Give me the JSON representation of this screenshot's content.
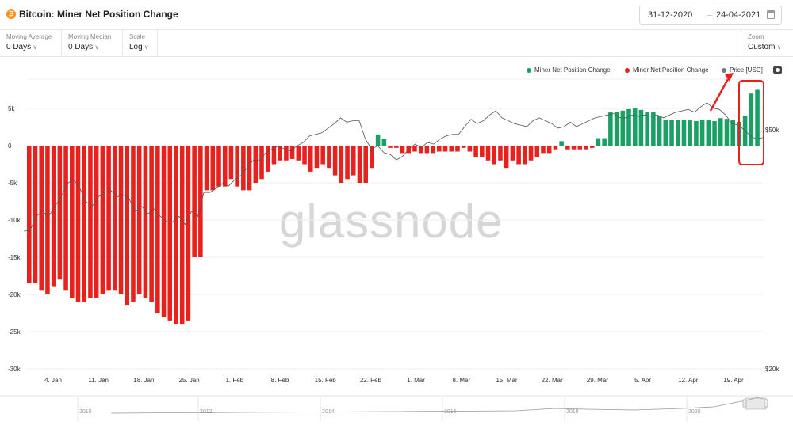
{
  "header": {
    "coin_glyph": "₿",
    "title": "Bitcoin: Miner Net Position Change",
    "date_from": "31-12-2020",
    "date_arrow": "→",
    "date_to": "24-04-2021"
  },
  "controls": {
    "moving_average": {
      "label": "Moving Average",
      "value": "0 Days"
    },
    "moving_median": {
      "label": "Moving Median",
      "value": "0 Days"
    },
    "scale": {
      "label": "Scale",
      "value": "Log"
    },
    "zoom": {
      "label": "Zoom",
      "value": "Custom"
    }
  },
  "legend": {
    "green": "Miner Net Position Change",
    "red": "Miner Net Position Change",
    "gray": "Price [USD]"
  },
  "watermark": "glassnode",
  "colors": {
    "positive": "#1aa065",
    "negative": "#e8211d",
    "price": "#555555",
    "highlight": "#e8211d",
    "grid": "#eeeeee"
  },
  "icons": [
    "bitcoin-icon",
    "calendar-icon",
    "camera-icon",
    "chevron-down-icon",
    "arrow-icon"
  ],
  "chart_data": {
    "type": "bar",
    "y_ticks": [
      "5k",
      "0",
      "-5k",
      "-10k",
      "-15k",
      "-20k",
      "-25k",
      "-30k"
    ],
    "y_tick_values": [
      5000,
      0,
      -5000,
      -10000,
      -15000,
      -20000,
      -25000,
      -30000
    ],
    "ylim": [
      -30000,
      10000
    ],
    "right_axis_ticks": [
      "$50k",
      "$20k"
    ],
    "x_labels": [
      "4. Jan",
      "11. Jan",
      "18. Jan",
      "25. Jan",
      "1. Feb",
      "8. Feb",
      "15. Feb",
      "22. Feb",
      "1. Mar",
      "8. Mar",
      "15. Mar",
      "22. Mar",
      "29. Mar",
      "5. Apr",
      "12. Apr",
      "19. Apr"
    ],
    "series": [
      {
        "name": "Miner Net Position Change",
        "start_date": "2021-01-01",
        "values": [
          -18500,
          -18500,
          -19500,
          -20000,
          -19000,
          -18000,
          -19500,
          -20500,
          -21000,
          -21000,
          -20500,
          -20500,
          -20000,
          -19500,
          -19500,
          -20000,
          -21500,
          -21000,
          -20000,
          -20500,
          -21000,
          -22500,
          -23000,
          -23500,
          -24000,
          -24000,
          -23500,
          -15000,
          -15000,
          -6000,
          -6000,
          -5500,
          -5500,
          -4500,
          -5500,
          -6000,
          -6000,
          -5000,
          -4500,
          -3500,
          -2500,
          -2000,
          -2000,
          -1800,
          -2000,
          -2500,
          -3500,
          -3000,
          -2500,
          -3000,
          -4000,
          -5000,
          -4500,
          -4000,
          -5000,
          -5000,
          -3000,
          1500,
          900,
          -300,
          -300,
          -1000,
          -1000,
          -800,
          -1000,
          -1000,
          -1000,
          -800,
          -800,
          -800,
          -800,
          -300,
          -800,
          -1500,
          -1500,
          -2000,
          -2500,
          -2000,
          -3000,
          -2000,
          -2500,
          -2500,
          -2000,
          -1500,
          -1000,
          -1000,
          -500,
          600,
          -500,
          -500,
          -500,
          -500,
          -300,
          1000,
          1000,
          4500,
          4500,
          4700,
          4900,
          5000,
          4800,
          4500,
          4500,
          4000,
          3500,
          3500,
          3500,
          3500,
          3400,
          3300,
          3500,
          3400,
          3300,
          3700,
          3600,
          3500,
          3200,
          4000,
          7000,
          7500
        ]
      }
    ],
    "price_series": {
      "name": "Price [USD]",
      "note": "price line plotted on right log axis",
      "values": [
        29300,
        29400,
        32000,
        33000,
        32000,
        34000,
        36000,
        39000,
        40000,
        38000,
        35000,
        34000,
        36000,
        37000,
        37500,
        36000,
        36500,
        35500,
        33000,
        34000,
        32500,
        33500,
        32000,
        31000,
        31000,
        32000,
        30500,
        33000,
        32000,
        37000,
        37000,
        38000,
        39000,
        38500,
        40000,
        41000,
        43000,
        45000,
        45000,
        47000,
        48000,
        49000,
        48000,
        47500,
        49000,
        50000,
        52000,
        52500,
        53000,
        54500,
        56000,
        58000,
        56500,
        57000,
        57000,
        51000,
        48000,
        49000,
        47000,
        46500,
        45000,
        46000,
        48000,
        49500,
        48500,
        50000,
        49500,
        51000,
        52000,
        52500,
        52500,
        55000,
        57500,
        56000,
        57000,
        59000,
        60500,
        58000,
        57000,
        56000,
        55500,
        55000,
        57000,
        58000,
        57000,
        56000,
        54500,
        55000,
        56500,
        55000,
        56000,
        57000,
        58000,
        58500,
        59000,
        59500,
        58000,
        58000,
        59000,
        58500,
        59000,
        58500,
        59000,
        58000,
        59000,
        60000,
        60500,
        61000,
        60000,
        62000,
        63500,
        61500,
        61000,
        59000,
        56000,
        55500,
        54000,
        52000,
        51000,
        51500
      ]
    }
  },
  "timeline": {
    "labels": [
      "2010",
      "2012",
      "2014",
      "2016",
      "2018",
      "2020"
    ]
  }
}
